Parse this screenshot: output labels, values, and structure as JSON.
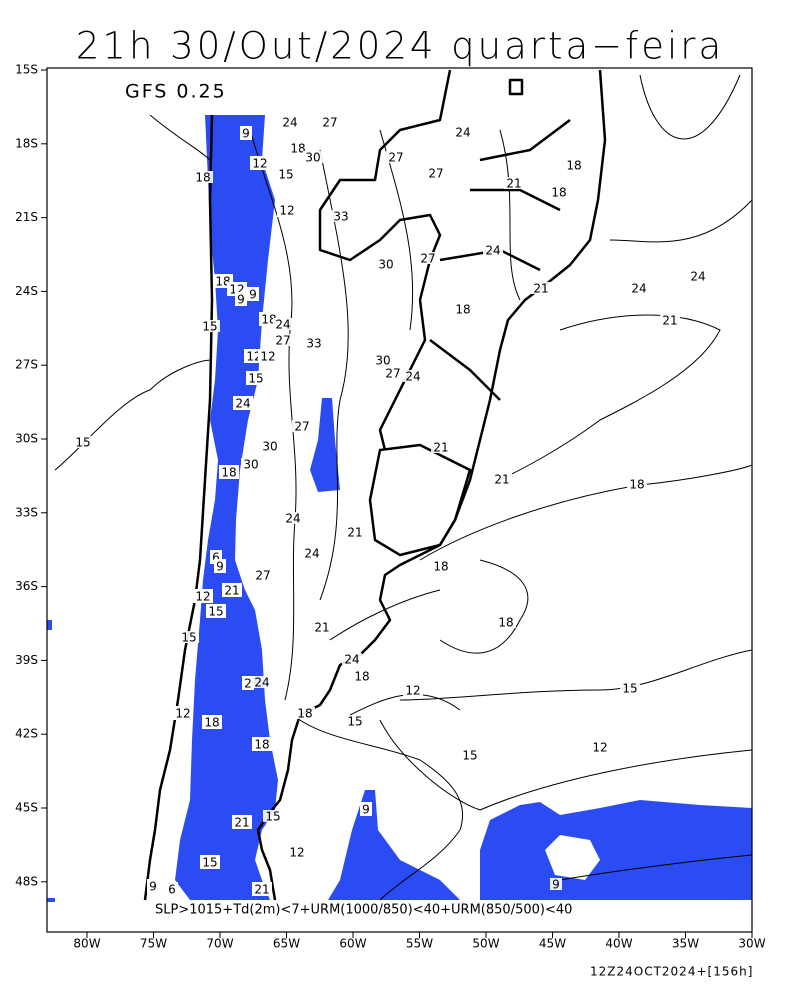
{
  "header": {
    "title": "21h 30/Out/2024 quarta−feira",
    "model": "GFS 0.25"
  },
  "map": {
    "lat_labels": [
      "15S",
      "18S",
      "21S",
      "24S",
      "27S",
      "30S",
      "33S",
      "36S",
      "39S",
      "42S",
      "45S",
      "48S"
    ],
    "lon_labels": [
      "80W",
      "75W",
      "70W",
      "65W",
      "60W",
      "55W",
      "50W",
      "45W",
      "40W",
      "35W",
      "30W"
    ],
    "contour_labels": [
      "9",
      "24",
      "27",
      "18",
      "30",
      "12",
      "15",
      "18",
      "12",
      "33",
      "27",
      "27",
      "24",
      "18",
      "18",
      "21",
      "24",
      "21",
      "24",
      "24",
      "30",
      "27",
      "18",
      "12",
      "9",
      "9",
      "18",
      "24",
      "18",
      "15",
      "27",
      "33",
      "12",
      "12",
      "21",
      "30",
      "27",
      "24",
      "15",
      "24",
      "27",
      "30",
      "15",
      "21",
      "18",
      "30",
      "21",
      "18",
      "24",
      "21",
      "24",
      "6",
      "9",
      "27",
      "18",
      "21",
      "12",
      "15",
      "18",
      "21",
      "15",
      "24",
      "18",
      "2",
      "24",
      "12",
      "15",
      "12",
      "18",
      "18",
      "15",
      "18",
      "12",
      "15",
      "9",
      "21",
      "15",
      "12",
      "15",
      "9",
      "9",
      "6",
      "21"
    ],
    "criteria": "SLP>1015+Td(2m)<7+URM(1000/850)<40+URM(850/500)<40"
  },
  "footer": "12Z24OCT2024+[156h]"
}
